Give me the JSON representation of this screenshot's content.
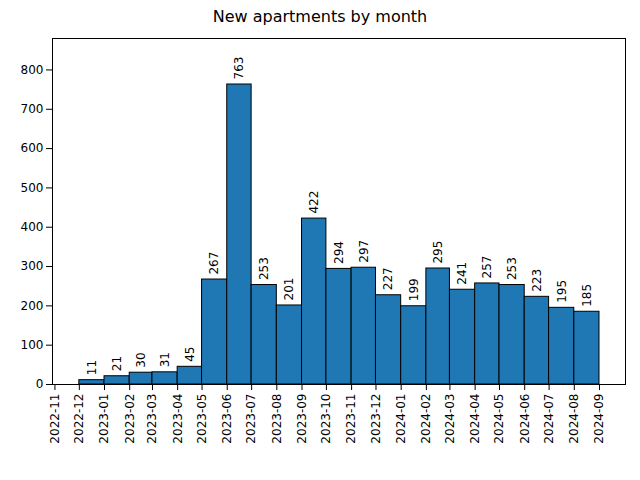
{
  "chart_data": {
    "type": "histogram",
    "title": "New apartments by month",
    "bins": [
      "2022-12",
      "2023-01",
      "2023-02",
      "2023-03",
      "2023-04",
      "2023-05",
      "2023-06",
      "2023-07",
      "2023-08",
      "2023-09",
      "2023-10",
      "2023-11",
      "2023-12",
      "2024-01",
      "2024-02",
      "2024-03",
      "2024-04",
      "2024-05",
      "2024-06",
      "2024-07",
      "2024-08",
      "2024-09"
    ],
    "values": [
      11,
      21,
      30,
      31,
      45,
      267,
      763,
      253,
      201,
      422,
      294,
      297,
      227,
      199,
      295,
      241,
      257,
      253,
      223,
      195,
      185
    ],
    "color": "#1f77b4",
    "xlim": [
      "2022-10-29",
      "2024-10-03"
    ],
    "xticks": [
      "2022-11",
      "2022-12",
      "2023-01",
      "2023-02",
      "2023-03",
      "2023-04",
      "2023-05",
      "2023-06",
      "2023-07",
      "2023-08",
      "2023-09",
      "2023-10",
      "2023-11",
      "2023-12",
      "2024-01",
      "2024-02",
      "2024-03",
      "2024-04",
      "2024-05",
      "2024-06",
      "2024-07",
      "2024-08",
      "2024-09"
    ],
    "ylim": [
      0,
      880
    ],
    "yticks": [
      0,
      100,
      200,
      300,
      400,
      500,
      600,
      700,
      800
    ],
    "grid": false,
    "data_labels": true
  }
}
